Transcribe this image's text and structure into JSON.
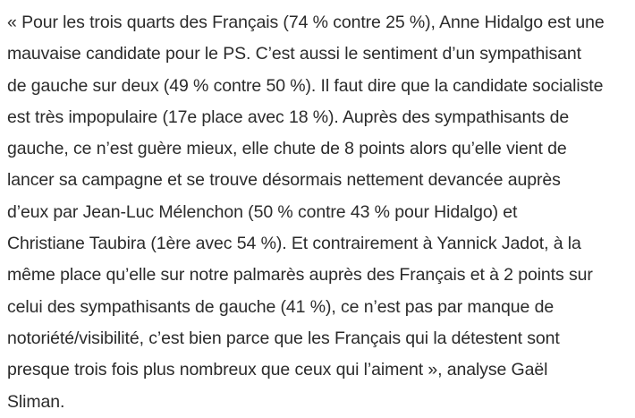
{
  "article": {
    "lines": [
      "« Pour les trois quarts des Français (74 % contre 25 %), Anne Hidalgo est une",
      "mauvaise candidate pour le PS. C’est aussi le sentiment d’un sympathisant",
      "de gauche sur deux (49 % contre 50 %). Il faut dire que la candidate socialiste",
      "est très impopulaire (17e place avec 18 %). Auprès des sympathisants de",
      "gauche, ce n’est guère mieux, elle chute de 8 points alors qu’elle vient de",
      "lancer sa campagne et se trouve désormais nettement devancée auprès",
      "d’eux par Jean-Luc Mélenchon (50 % contre 43 % pour Hidalgo) et",
      "Christiane Taubira (1ère avec 54 %). Et contrairement à Yannick Jadot, à la",
      "même place qu’elle sur notre palmarès auprès des Français et à 2 points sur",
      "celui des sympathisants de gauche (41 %), ce n’est pas par manque de",
      "notoriété/visibilité, c’est bien parce que les Français qui la détestent sont",
      "presque trois fois plus nombreux que ceux qui l’aiment », analyse Gaël",
      "Sliman."
    ]
  }
}
